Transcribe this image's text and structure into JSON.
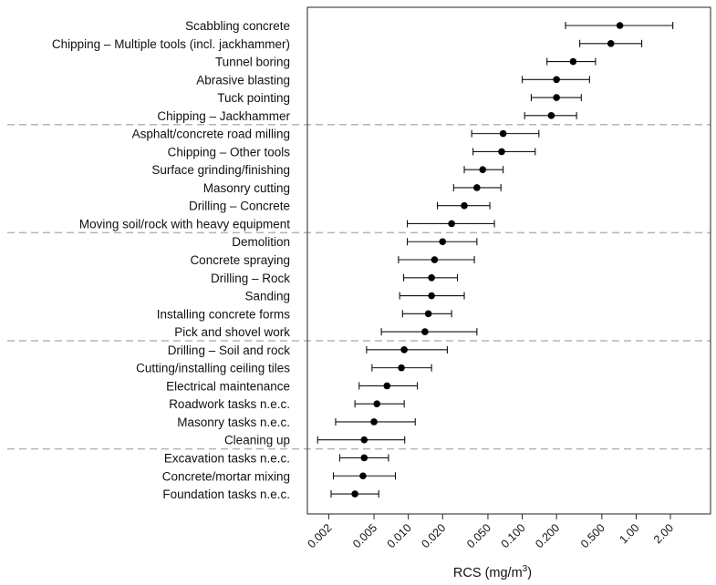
{
  "chart_data": {
    "type": "dot-with-error-bars",
    "xlabel": "RCS (mg/m",
    "xlabel_superscript": "3",
    "xlabel_suffix": ")",
    "xscale": "log",
    "xlim": [
      0.0013,
      4.5
    ],
    "xtick_values": [
      0.002,
      0.005,
      0.01,
      0.02,
      0.05,
      0.1,
      0.2,
      0.5,
      1.0,
      2.0
    ],
    "xtick_labels": [
      "0.002",
      "0.005",
      "0.010",
      "0.020",
      "0.050",
      "0.100",
      "0.200",
      "0.500",
      "1.00",
      "2.00"
    ],
    "group_separators_after_rows": [
      6,
      12,
      18,
      24
    ],
    "rows": [
      {
        "task": "Scabbling concrete",
        "value": 0.72,
        "low": 0.24,
        "high": 2.1
      },
      {
        "task": "Chipping – Multiple tools (incl. jackhammer)",
        "value": 0.6,
        "low": 0.32,
        "high": 1.12
      },
      {
        "task": "Tunnel boring",
        "value": 0.28,
        "low": 0.165,
        "high": 0.44
      },
      {
        "task": "Abrasive blasting",
        "value": 0.2,
        "low": 0.1,
        "high": 0.39
      },
      {
        "task": "Tuck pointing",
        "value": 0.2,
        "low": 0.12,
        "high": 0.33
      },
      {
        "task": "Chipping – Jackhammer",
        "value": 0.18,
        "low": 0.105,
        "high": 0.3
      },
      {
        "task": "Asphalt/concrete road milling",
        "value": 0.068,
        "low": 0.036,
        "high": 0.14
      },
      {
        "task": "Chipping – Other tools",
        "value": 0.066,
        "low": 0.037,
        "high": 0.13
      },
      {
        "task": "Surface grinding/finishing",
        "value": 0.045,
        "low": 0.031,
        "high": 0.068
      },
      {
        "task": "Masonry cutting",
        "value": 0.04,
        "low": 0.025,
        "high": 0.065
      },
      {
        "task": "Drilling – Concrete",
        "value": 0.031,
        "low": 0.018,
        "high": 0.052
      },
      {
        "task": "Moving soil/rock with heavy equipment",
        "value": 0.024,
        "low": 0.0098,
        "high": 0.057
      },
      {
        "task": "Demolition",
        "value": 0.02,
        "low": 0.0098,
        "high": 0.04
      },
      {
        "task": "Concrete spraying",
        "value": 0.017,
        "low": 0.0082,
        "high": 0.038
      },
      {
        "task": "Drilling – Rock",
        "value": 0.016,
        "low": 0.0091,
        "high": 0.027
      },
      {
        "task": "Sanding",
        "value": 0.016,
        "low": 0.0084,
        "high": 0.031
      },
      {
        "task": "Installing concrete forms",
        "value": 0.015,
        "low": 0.0089,
        "high": 0.024
      },
      {
        "task": "Pick and shovel work",
        "value": 0.014,
        "low": 0.0058,
        "high": 0.04
      },
      {
        "task": "Drilling – Soil and rock",
        "value": 0.0092,
        "low": 0.0043,
        "high": 0.022
      },
      {
        "task": "Cutting/installing ceiling tiles",
        "value": 0.0087,
        "low": 0.0048,
        "high": 0.016
      },
      {
        "task": "Electrical maintenance",
        "value": 0.0065,
        "low": 0.0037,
        "high": 0.012
      },
      {
        "task": "Roadwork tasks n.e.c.",
        "value": 0.0053,
        "low": 0.0034,
        "high": 0.0092
      },
      {
        "task": "Masonry tasks n.e.c.",
        "value": 0.005,
        "low": 0.0023,
        "high": 0.0115
      },
      {
        "task": "Cleaning up",
        "value": 0.0041,
        "low": 0.0016,
        "high": 0.0093
      },
      {
        "task": "Excavation tasks n.e.c.",
        "value": 0.0041,
        "low": 0.0025,
        "high": 0.0067
      },
      {
        "task": "Concrete/mortar mixing",
        "value": 0.004,
        "low": 0.0022,
        "high": 0.0077
      },
      {
        "task": "Foundation tasks n.e.c.",
        "value": 0.0034,
        "low": 0.0021,
        "high": 0.0055
      }
    ]
  }
}
